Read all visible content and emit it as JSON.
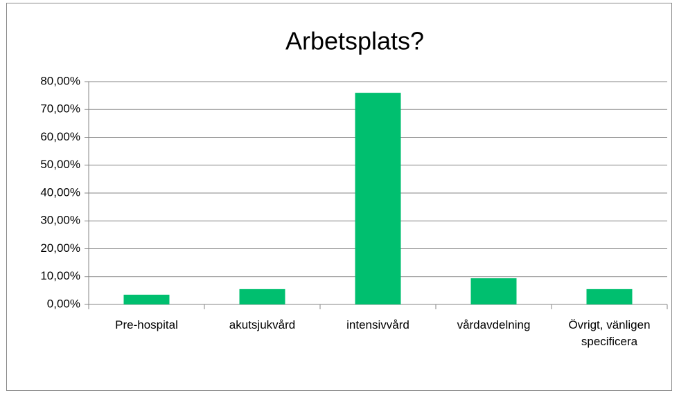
{
  "chart_data": {
    "type": "bar",
    "title": "Arbetsplats?",
    "categories": [
      "Pre-hospital",
      "akutsjukvård",
      "intensivvård",
      "vårdavdelning",
      "Övrigt, vänligen specificera"
    ],
    "values": [
      3.5,
      5.5,
      76.0,
      9.4,
      5.5
    ],
    "color": "#00bf6f",
    "ylim": [
      0,
      80
    ],
    "yticks": [
      {
        "value": 0,
        "label": "0,00%"
      },
      {
        "value": 10,
        "label": "10,00%"
      },
      {
        "value": 20,
        "label": "20,00%"
      },
      {
        "value": 30,
        "label": "30,00%"
      },
      {
        "value": 40,
        "label": "40,00%"
      },
      {
        "value": 50,
        "label": "50,00%"
      },
      {
        "value": 60,
        "label": "60,00%"
      },
      {
        "value": 70,
        "label": "70,00%"
      },
      {
        "value": 80,
        "label": "80,00%"
      }
    ],
    "grid": true
  }
}
